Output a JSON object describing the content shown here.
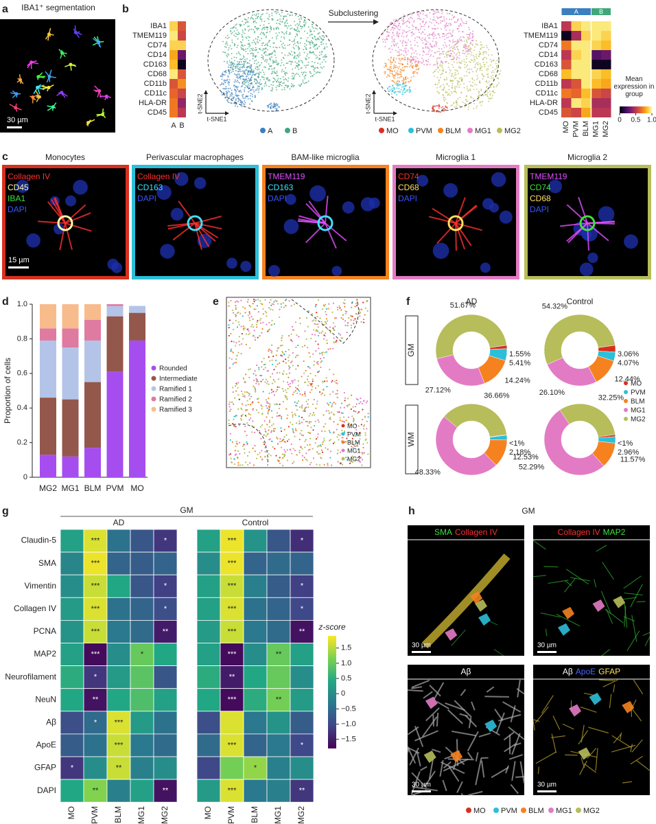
{
  "figure": {
    "panel_labels": [
      "a",
      "b",
      "c",
      "d",
      "e",
      "f",
      "g",
      "h"
    ],
    "a": {
      "title": "IBA1⁺ segmentation",
      "scale_bar": "30 µm"
    },
    "b": {
      "arrow_label": "Subclustering",
      "tsne_x": "t-SNE1",
      "tsne_y": "t-SNE2"
    },
    "c": {
      "scale_bar": "15 µm",
      "panels": [
        {
          "title": "Monocytes",
          "stains": [
            {
              "name": "Collagen IV",
              "color": "#ff3030"
            },
            {
              "name": "CD45",
              "color": "#ffffa8"
            },
            {
              "name": "IBA1",
              "color": "#40e040"
            },
            {
              "name": "DAPI",
              "color": "#3a55ff"
            }
          ]
        },
        {
          "title": "Perivascular macrophages",
          "stains": [
            {
              "name": "Collagen IV",
              "color": "#ff3030"
            },
            {
              "name": "CD163",
              "color": "#40e0ff"
            },
            {
              "name": "DAPI",
              "color": "#3a55ff"
            }
          ]
        },
        {
          "title": "BAM-like microglia",
          "stains": [
            {
              "name": "TMEM119",
              "color": "#e050ff"
            },
            {
              "name": "CD163",
              "color": "#40e0ff"
            },
            {
              "name": "DAPI",
              "color": "#3a55ff"
            }
          ]
        },
        {
          "title": "Microglia 1",
          "stains": [
            {
              "name": "CD74",
              "color": "#ff3030"
            },
            {
              "name": "CD68",
              "color": "#ffe060"
            },
            {
              "name": "DAPI",
              "color": "#3a55ff"
            }
          ]
        },
        {
          "title": "Microglia 2",
          "stains": [
            {
              "name": "TMEM119",
              "color": "#e050ff"
            },
            {
              "name": "CD74",
              "color": "#40e040"
            },
            {
              "name": "CD68",
              "color": "#ffe060"
            },
            {
              "name": "DAPI",
              "color": "#3a55ff"
            }
          ]
        }
      ]
    },
    "h": {
      "title": "GM",
      "scale_bar": "30 µm",
      "panels": [
        {
          "stains": [
            {
              "name": "SMA",
              "color": "#40e040"
            },
            {
              "name": "Collagen IV",
              "color": "#ff3030"
            }
          ]
        },
        {
          "stains": [
            {
              "name": "Collagen IV",
              "color": "#ff3030"
            },
            {
              "name": "MAP2",
              "color": "#40e040"
            }
          ]
        },
        {
          "stains": [
            {
              "name": "Aβ",
              "color": "#ffffff"
            }
          ]
        },
        {
          "stains": [
            {
              "name": "Aβ",
              "color": "#ffffff"
            },
            {
              "name": "ApoE",
              "color": "#4a66ff"
            },
            {
              "name": "GFAP",
              "color": "#ffe060"
            }
          ]
        }
      ]
    }
  },
  "chart_data": [
    {
      "type": "heatmap",
      "colormap": "inferno",
      "zlim": [
        0,
        1
      ],
      "rows": [
        "IBA1",
        "TMEM119",
        "CD74",
        "CD14",
        "CD163",
        "CD68",
        "CD11b",
        "CD11c",
        "HLA-DR",
        "CD45"
      ],
      "columns": [
        "A",
        "B"
      ],
      "values": [
        [
          0.9,
          0.6
        ],
        [
          0.95,
          0.55
        ],
        [
          0.9,
          0.9
        ],
        [
          0.8,
          0.3
        ],
        [
          0.85,
          0.05
        ],
        [
          0.95,
          0.6
        ],
        [
          0.6,
          0.75
        ],
        [
          0.65,
          0.55
        ],
        [
          0.7,
          0.4
        ],
        [
          0.7,
          0.5
        ]
      ]
    },
    {
      "type": "heatmap",
      "colormap": "inferno",
      "zlim": [
        0,
        1
      ],
      "rows": [
        "IBA1",
        "TMEM119",
        "CD74",
        "CD14",
        "CD163",
        "CD68",
        "CD11b",
        "CD11c",
        "HLA-DR",
        "CD45"
      ],
      "columns": [
        "MO",
        "PVM",
        "BLM",
        "MG1",
        "MG2"
      ],
      "column_groups": [
        {
          "name": "A",
          "color": "#3a7fbf",
          "span": 3
        },
        {
          "name": "B",
          "color": "#3fa77a",
          "span": 2
        }
      ],
      "values": [
        [
          0.5,
          0.9,
          0.95,
          0.95,
          0.95
        ],
        [
          0.05,
          0.45,
          0.9,
          0.95,
          0.9
        ],
        [
          0.7,
          0.95,
          0.95,
          0.9,
          0.85
        ],
        [
          0.5,
          0.9,
          0.95,
          0.25,
          0.3
        ],
        [
          0.6,
          0.95,
          0.95,
          0.05,
          0.05
        ],
        [
          0.85,
          0.95,
          0.95,
          0.9,
          0.85
        ],
        [
          0.5,
          0.6,
          0.95,
          0.85,
          0.8
        ],
        [
          0.7,
          0.65,
          0.85,
          0.6,
          0.55
        ],
        [
          0.5,
          0.95,
          0.9,
          0.45,
          0.45
        ],
        [
          0.6,
          0.55,
          0.8,
          0.5,
          0.5
        ]
      ],
      "colorbar_label": "Mean expression in group",
      "zticks": [
        0,
        0.5,
        {
          "value": 1,
          "label": "1.0"
        }
      ]
    },
    {
      "type": "stacked_bar",
      "ylabel": "Proportion of cells",
      "categories": [
        "MG2",
        "MG1",
        "BLM",
        "PVM",
        "MO"
      ],
      "series": [
        {
          "name": "Rounded",
          "color": "#a64df0",
          "values": [
            0.13,
            0.12,
            0.17,
            0.61,
            0.79
          ]
        },
        {
          "name": "Intermediate",
          "color": "#94574b",
          "values": [
            0.33,
            0.33,
            0.38,
            0.32,
            0.16
          ]
        },
        {
          "name": "Ramified 1",
          "color": "#b4c4e8",
          "values": [
            0.33,
            0.3,
            0.24,
            0.06,
            0.04
          ]
        },
        {
          "name": "Ramified 2",
          "color": "#df7aa0",
          "values": [
            0.07,
            0.11,
            0.12,
            0.01,
            0
          ]
        },
        {
          "name": "Ramified 3",
          "color": "#f8bb8c",
          "values": [
            0.14,
            0.14,
            0.09,
            0,
            0
          ]
        }
      ],
      "ylim": [
        0,
        1
      ],
      "yticks": [
        0,
        0.2,
        0.4,
        0.6,
        0.8,
        {
          "value": 1,
          "label": "1.0"
        }
      ]
    },
    {
      "type": "donut",
      "categories": [
        "MO",
        "PVM",
        "BLM",
        "MG1",
        "MG2"
      ],
      "colors": [
        "#d7301f",
        "#2bbfd9",
        "#f5821f",
        "#e37bc4",
        "#b6bd5a"
      ],
      "columns": [
        "AD",
        "Control"
      ],
      "rows": [
        "GM",
        "WM"
      ],
      "values": [
        [
          [
            1.55,
            5.41,
            14.24,
            27.12,
            51.67
          ],
          [
            3.06,
            4.07,
            12.44,
            26.1,
            54.32
          ]
        ],
        [
          [
            0.3,
            2.18,
            12.53,
            48.33,
            36.66
          ],
          [
            0.93,
            2.96,
            11.57,
            52.29,
            32.25
          ]
        ]
      ],
      "value_labels": [
        [
          [
            "1.55%",
            "5.41%",
            "14.24%",
            "27.12%",
            "51.67%"
          ],
          [
            "3.06%",
            "4.07%",
            "12.44%",
            "26.10%",
            "54.32%"
          ]
        ],
        [
          [
            "<1%",
            "2.18%",
            "12.53%",
            "48.33%",
            "36.66%"
          ],
          [
            "<1%",
            "2.96%",
            "11.57%",
            "52.29%",
            "32.25%"
          ]
        ]
      ]
    },
    {
      "type": "heatmap",
      "colormap": "viridis",
      "zlim": [
        -1.8,
        1.9
      ],
      "title": "GM",
      "rows": [
        "Claudin-5",
        "SMA",
        "Vimentin",
        "Collagen IV",
        "PCNA",
        "MAP2",
        "Neurofilament",
        "NeuN",
        "Aβ",
        "ApoE",
        "GFAP",
        "DAPI"
      ],
      "columns": [
        "MO",
        "PVM",
        "BLM",
        "MG1",
        "MG2"
      ],
      "panels": [
        {
          "title": "AD",
          "values": [
            [
              0.3,
              1.7,
              -0.4,
              -0.8,
              -1.2
            ],
            [
              -0.1,
              1.8,
              -0.6,
              -0.7,
              -0.6
            ],
            [
              0,
              1.6,
              0.4,
              -0.8,
              -1.1
            ],
            [
              0.2,
              1.7,
              -0.4,
              -0.6,
              -0.9
            ],
            [
              0.1,
              1.6,
              -0.3,
              -0.5,
              -1.5
            ],
            [
              0.3,
              -1.7,
              0,
              1,
              0.4
            ],
            [
              0.5,
              -1.2,
              0.2,
              0.9,
              -0.8
            ],
            [
              0.4,
              -1.6,
              0.4,
              0.8,
              0.3
            ],
            [
              -0.9,
              -0.5,
              1.7,
              0.2,
              -0.4
            ],
            [
              -0.7,
              -0.4,
              1.6,
              -0.3,
              -0.5
            ],
            [
              -1.2,
              0,
              1.6,
              -0.2,
              0
            ],
            [
              0.4,
              1.2,
              -0.2,
              0.3,
              -1.6
            ]
          ],
          "stars": [
            [
              null,
              "***",
              null,
              null,
              "*"
            ],
            [
              null,
              "***",
              null,
              null,
              null
            ],
            [
              null,
              "***",
              null,
              null,
              "*"
            ],
            [
              null,
              "***",
              null,
              null,
              "*"
            ],
            [
              null,
              "***",
              null,
              null,
              "**"
            ],
            [
              null,
              "***",
              null,
              "*",
              null
            ],
            [
              null,
              "*",
              null,
              null,
              null
            ],
            [
              null,
              "**",
              null,
              null,
              null
            ],
            [
              null,
              "*",
              "***",
              null,
              null
            ],
            [
              null,
              null,
              "***",
              null,
              null
            ],
            [
              "*",
              null,
              "**",
              null,
              null
            ],
            [
              null,
              "**",
              null,
              null,
              "**"
            ]
          ]
        },
        {
          "title": "Control",
          "values": [
            [
              0.3,
              1.8,
              0.1,
              -0.8,
              -1.3
            ],
            [
              0,
              1.8,
              -0.6,
              -0.5,
              -0.6
            ],
            [
              0.3,
              1.6,
              -0.2,
              -0.7,
              -1.1
            ],
            [
              0.3,
              1.7,
              -0.4,
              -0.6,
              -1
            ],
            [
              0.2,
              1.6,
              -0.3,
              -0.5,
              -1.6
            ],
            [
              0.3,
              -1.7,
              0,
              1,
              0.3
            ],
            [
              0.5,
              -1.5,
              0.4,
              1,
              0
            ],
            [
              0.4,
              -1.7,
              0.5,
              1.1,
              0.2
            ],
            [
              -0.9,
              1.7,
              -0.3,
              0.1,
              -0.7
            ],
            [
              -0.5,
              1.7,
              -0.6,
              -0.3,
              -1
            ],
            [
              -1,
              1.1,
              1.3,
              -0.2,
              0
            ],
            [
              0.2,
              1.7,
              -0.3,
              -0.2,
              -1.2
            ]
          ],
          "stars": [
            [
              null,
              "***",
              null,
              null,
              "*"
            ],
            [
              null,
              "***",
              null,
              null,
              null
            ],
            [
              null,
              "***",
              null,
              null,
              "*"
            ],
            [
              null,
              "***",
              null,
              null,
              "*"
            ],
            [
              null,
              "***",
              null,
              null,
              "**"
            ],
            [
              null,
              "***",
              null,
              "**",
              null
            ],
            [
              null,
              "**",
              null,
              null,
              null
            ],
            [
              null,
              "***",
              null,
              "**",
              null
            ],
            [
              null,
              null,
              null,
              null,
              null
            ],
            [
              null,
              "***",
              null,
              null,
              "*"
            ],
            [
              null,
              null,
              "*",
              null,
              null
            ],
            [
              null,
              "***",
              null,
              null,
              "**"
            ]
          ]
        }
      ],
      "colorbar_label": "z-score",
      "zticks": [
        1.5,
        {
          "value": 1,
          "label": "1.0"
        },
        0.5,
        0,
        {
          "value": -0.5,
          "label": "−0.5"
        },
        {
          "value": -1,
          "label": "−1.0"
        },
        {
          "value": -1.5,
          "label": "−1.5"
        }
      ]
    }
  ]
}
